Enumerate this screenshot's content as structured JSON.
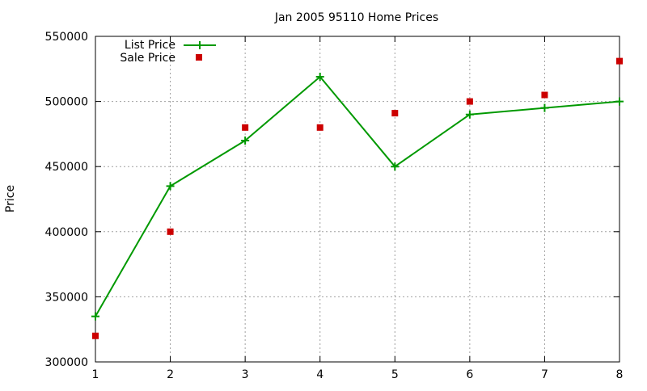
{
  "chart_data": {
    "type": "line",
    "title": "Jan 2005 95110 Home Prices",
    "xlabel": "",
    "ylabel": "Price",
    "x": [
      1,
      2,
      3,
      4,
      5,
      6,
      7,
      8
    ],
    "xlim": [
      1,
      8
    ],
    "ylim": [
      300000,
      550000
    ],
    "xticks": [
      "1",
      "2",
      "3",
      "4",
      "5",
      "6",
      "7",
      "8"
    ],
    "yticks": [
      "300000",
      "350000",
      "400000",
      "450000",
      "500000",
      "550000"
    ],
    "grid": true,
    "legend_position": "top-left",
    "series": [
      {
        "name": "List Price",
        "style": "line+points",
        "marker": "plus",
        "color": "#009900",
        "values": [
          335000,
          435000,
          470000,
          519000,
          450000,
          490000,
          495000,
          500000
        ]
      },
      {
        "name": "Sale Price",
        "style": "points",
        "marker": "square",
        "color": "#cc0000",
        "values": [
          320000,
          400000,
          480000,
          480000,
          491000,
          500000,
          505000,
          531000
        ]
      }
    ]
  }
}
